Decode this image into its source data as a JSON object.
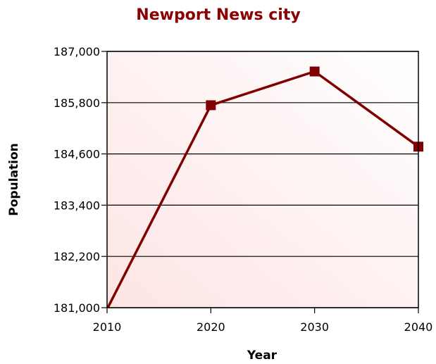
{
  "chart_data": {
    "type": "line",
    "title": "Newport News city",
    "xlabel": "Year",
    "ylabel": "Population",
    "x": [
      2010,
      2020,
      2030,
      2040
    ],
    "x_tick_labels": [
      "2010",
      "2020",
      "2030",
      "2040"
    ],
    "y_tick_values": [
      181000,
      182200,
      183400,
      184600,
      185800,
      187000
    ],
    "y_tick_labels": [
      "181,000",
      "182,200",
      "183,400",
      "184,600",
      "185,800",
      "187,000"
    ],
    "ylim": [
      181000,
      187000
    ],
    "grid": true,
    "series": [
      {
        "values": [
          180965,
          185740,
          186530,
          184770
        ]
      }
    ],
    "colors": {
      "title": "#8b0000",
      "line": "#800000",
      "marker": "#800000",
      "plot_bg_start": "#fde4e4",
      "plot_bg_end": "#ffffff",
      "grid": "#000000"
    }
  }
}
